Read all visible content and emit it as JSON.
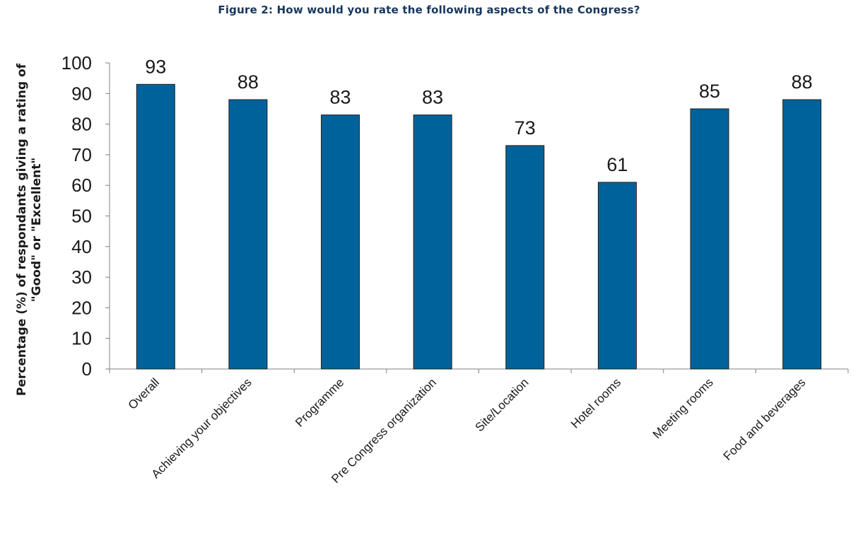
{
  "chart_data": {
    "type": "bar",
    "title": "Figure 2: How would you rate the following aspects of the Congress?",
    "ylabel": "Percentage (%) of respondants giving a rating of \"Good\" or \"Excellent\"",
    "xlabel": "",
    "ylim": [
      0,
      100
    ],
    "yticks": [
      0,
      10,
      20,
      30,
      40,
      50,
      60,
      70,
      80,
      90,
      100
    ],
    "grid": false,
    "categories": [
      "Overall",
      "Achieving your objectives",
      "Programme",
      "Pre Congress organization",
      "Site/Location",
      "Hotel rooms",
      "Meeting rooms",
      "Food and beverages"
    ],
    "values": [
      93,
      88,
      83,
      83,
      73,
      61,
      85,
      88
    ],
    "bar_color": "#00629b",
    "axis_color": "#808080",
    "text_color": "#1a1a1a",
    "title_color": "#17365d"
  }
}
